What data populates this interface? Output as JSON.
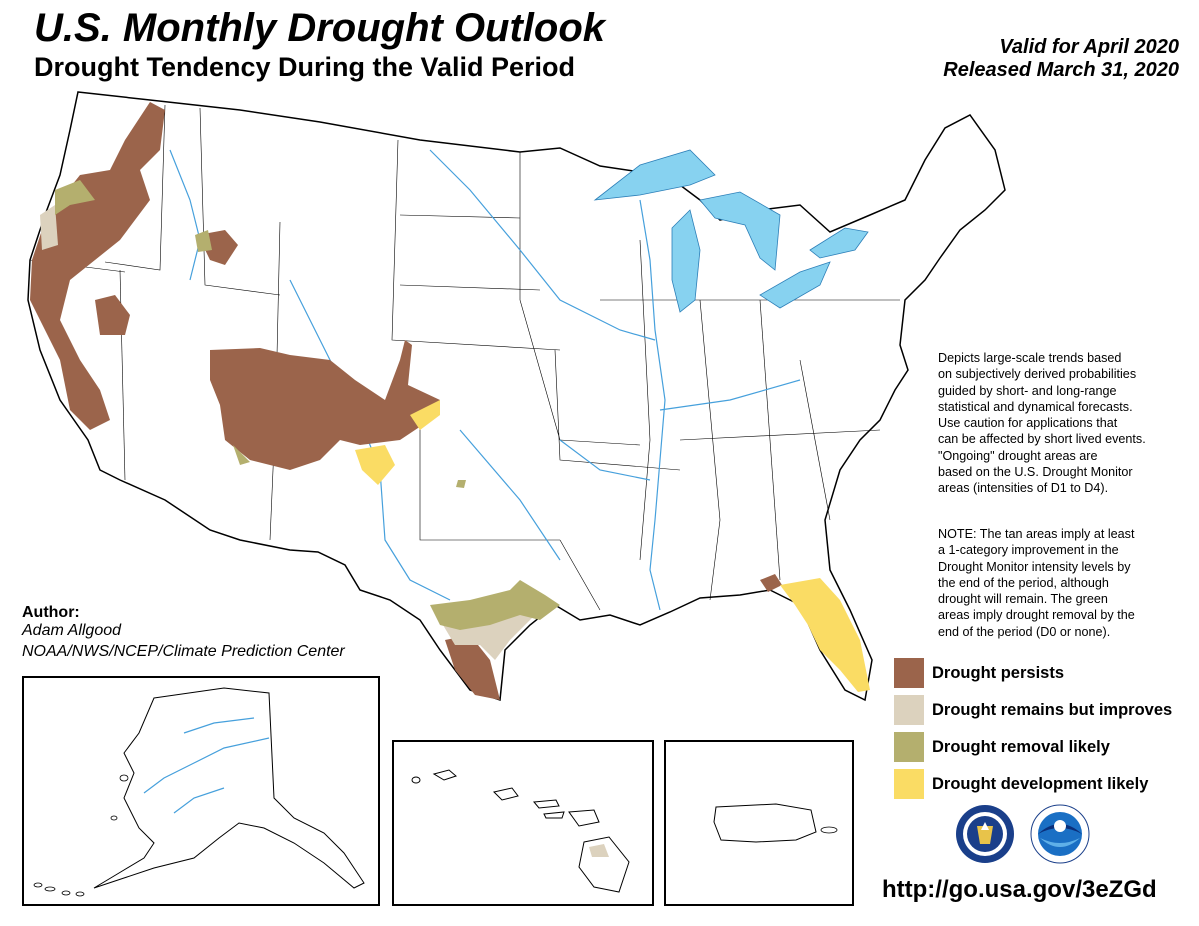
{
  "title": "U.S. Monthly Drought Outlook",
  "subtitle": "Drought Tendency During the Valid Period",
  "valid": "Valid for April 2020",
  "released": "Released March 31, 2020",
  "description": "Depicts large-scale trends based\non subjectively derived probabilities\nguided by short- and long-range\nstatistical and dynamical forecasts.\nUse caution for applications that\ncan be affected by short lived events.\n\"Ongoing\" drought areas are\nbased on the U.S. Drought Monitor\nareas (intensities of D1 to D4).",
  "note": "NOTE: The tan areas imply at least\na 1-category improvement in the\nDrought Monitor intensity levels by\nthe end of the period, although\ndrought will remain. The green\nareas imply drought removal by the\nend of the period (D0 or none).",
  "legend": [
    {
      "label": "Drought persists",
      "color": "#9b644b"
    },
    {
      "label": "Drought remains but improves",
      "color": "#dcd2be"
    },
    {
      "label": "Drought removal likely",
      "color": "#b4af6e"
    },
    {
      "label": "Drought development likely",
      "color": "#fadc64"
    }
  ],
  "author": {
    "heading": "Author:",
    "name": "Adam Allgood",
    "org": "NOAA/NWS/NCEP/Climate Prediction Center"
  },
  "url": "http://go.usa.gov/3eZGd",
  "colors": {
    "water": "#87d2f0",
    "river": "#46a0dc",
    "persist": "#9b644b",
    "improve": "#dcd2be",
    "removal": "#b4af6e",
    "development": "#fadc64"
  },
  "logos": [
    "nws-seal-icon",
    "noaa-logo-icon"
  ]
}
